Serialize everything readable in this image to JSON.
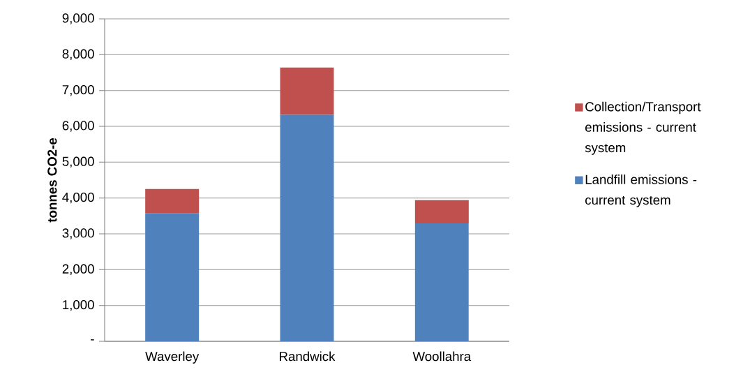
{
  "chart_data": {
    "type": "bar",
    "stacked": true,
    "ylabel": "tonnes CO2-e",
    "categories": [
      "Waverley",
      "Randwick",
      "Woollahra"
    ],
    "series": [
      {
        "name": "Landfill emissions - current system",
        "color": "#4f81bd",
        "values": [
          3580,
          6320,
          3290
        ]
      },
      {
        "name": "Collection/Transport emissions - current system",
        "color": "#c0504d",
        "values": [
          670,
          1320,
          650
        ]
      }
    ],
    "ylim": [
      0,
      9000
    ],
    "yticks": [
      {
        "value": 0,
        "label": "-"
      },
      {
        "value": 1000,
        "label": "1,000"
      },
      {
        "value": 2000,
        "label": "2,000"
      },
      {
        "value": 3000,
        "label": "3,000"
      },
      {
        "value": 4000,
        "label": "4,000"
      },
      {
        "value": 5000,
        "label": "5,000"
      },
      {
        "value": 6000,
        "label": "6,000"
      },
      {
        "value": 7000,
        "label": "7,000"
      },
      {
        "value": 8000,
        "label": "8,000"
      },
      {
        "value": 9000,
        "label": "9,000"
      }
    ],
    "grid": "y",
    "legend": "right"
  }
}
